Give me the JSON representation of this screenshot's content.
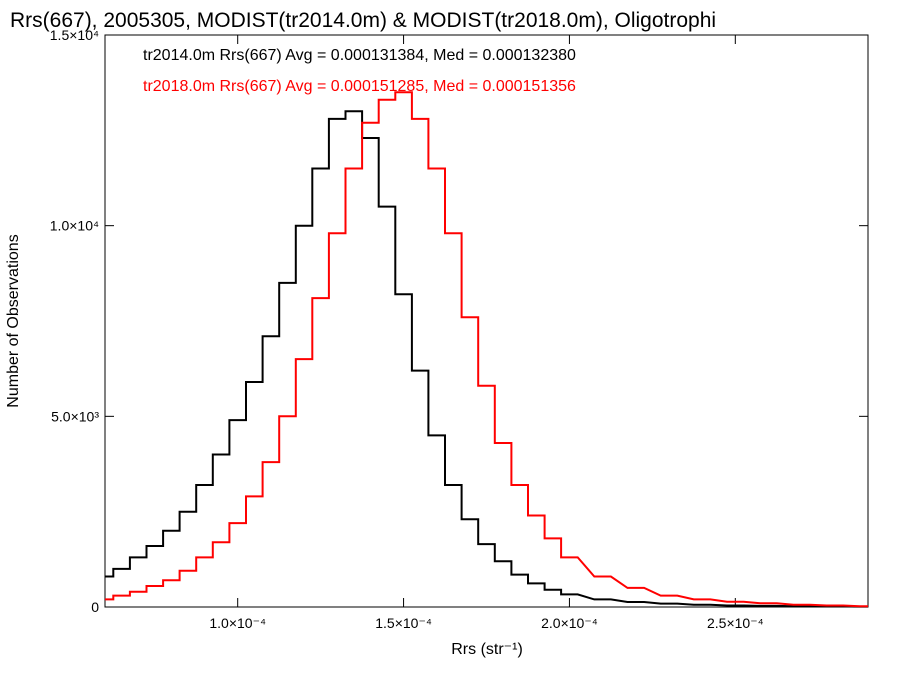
{
  "chart_data": {
    "type": "line",
    "title": "Rrs(667), 2005305, MODIST(tr2014.0m) & MODIST(tr2018.0m), Oligotrophi",
    "xlabel": "Rrs (str⁻¹)",
    "ylabel": "Number of Observations",
    "xlim": [
      6e-05,
      0.00029
    ],
    "ylim": [
      0,
      15000
    ],
    "x_ticks": [
      {
        "value": 0.0001,
        "label": "1.0×10⁻⁴"
      },
      {
        "value": 0.00015,
        "label": "1.5×10⁻⁴"
      },
      {
        "value": 0.0002,
        "label": "2.0×10⁻⁴"
      },
      {
        "value": 0.00025,
        "label": "2.5×10⁻⁴"
      }
    ],
    "y_ticks": [
      {
        "value": 0,
        "label": "0"
      },
      {
        "value": 5000,
        "label": "5.0×10³"
      },
      {
        "value": 10000,
        "label": "1.0×10⁴"
      },
      {
        "value": 15000,
        "label": "1.5×10⁴"
      }
    ],
    "annotations": [
      {
        "text": "tr2014.0m Rrs(667) Avg = 0.000131384, Med = 0.000132380",
        "color": "#000000"
      },
      {
        "text": "tr2018.0m Rrs(667) Avg = 0.000151285, Med = 0.000151356",
        "color": "#ff0000"
      }
    ],
    "series": [
      {
        "color": "#000000",
        "x": [
          6e-05,
          6.5e-05,
          7e-05,
          7.5e-05,
          8e-05,
          8.5e-05,
          9e-05,
          9.5e-05,
          0.0001,
          0.000105,
          0.00011,
          0.000115,
          0.00012,
          0.000125,
          0.00013,
          0.000135,
          0.00014,
          0.000145,
          0.00015,
          0.000155,
          0.00016,
          0.000165,
          0.00017,
          0.000175,
          0.00018,
          0.000185,
          0.00019,
          0.000195,
          0.0002,
          0.00021,
          0.00022,
          0.00023,
          0.00024,
          0.00025,
          0.00026,
          0.00027,
          0.00028,
          0.00029
        ],
        "values": [
          800,
          1000,
          1300,
          1600,
          2000,
          2500,
          3200,
          4000,
          4900,
          5900,
          7100,
          8500,
          10000,
          11500,
          12800,
          13000,
          12300,
          10500,
          8200,
          6200,
          4500,
          3200,
          2300,
          1650,
          1200,
          850,
          620,
          450,
          330,
          200,
          130,
          90,
          60,
          40,
          30,
          20,
          15,
          10
        ]
      },
      {
        "color": "#ff0000",
        "x": [
          6e-05,
          6.5e-05,
          7e-05,
          7.5e-05,
          8e-05,
          8.5e-05,
          9e-05,
          9.5e-05,
          0.0001,
          0.000105,
          0.00011,
          0.000115,
          0.00012,
          0.000125,
          0.00013,
          0.000135,
          0.00014,
          0.000145,
          0.00015,
          0.000155,
          0.00016,
          0.000165,
          0.00017,
          0.000175,
          0.00018,
          0.000185,
          0.00019,
          0.000195,
          0.0002,
          0.00021,
          0.00022,
          0.00023,
          0.00024,
          0.00025,
          0.00026,
          0.00027,
          0.00028,
          0.00029
        ],
        "values": [
          200,
          300,
          400,
          550,
          700,
          950,
          1300,
          1700,
          2200,
          2900,
          3800,
          5000,
          6500,
          8100,
          9800,
          11500,
          12700,
          13300,
          13500,
          12800,
          11500,
          9800,
          7600,
          5800,
          4300,
          3200,
          2400,
          1800,
          1300,
          800,
          500,
          300,
          200,
          140,
          100,
          60,
          40,
          20
        ]
      }
    ]
  }
}
